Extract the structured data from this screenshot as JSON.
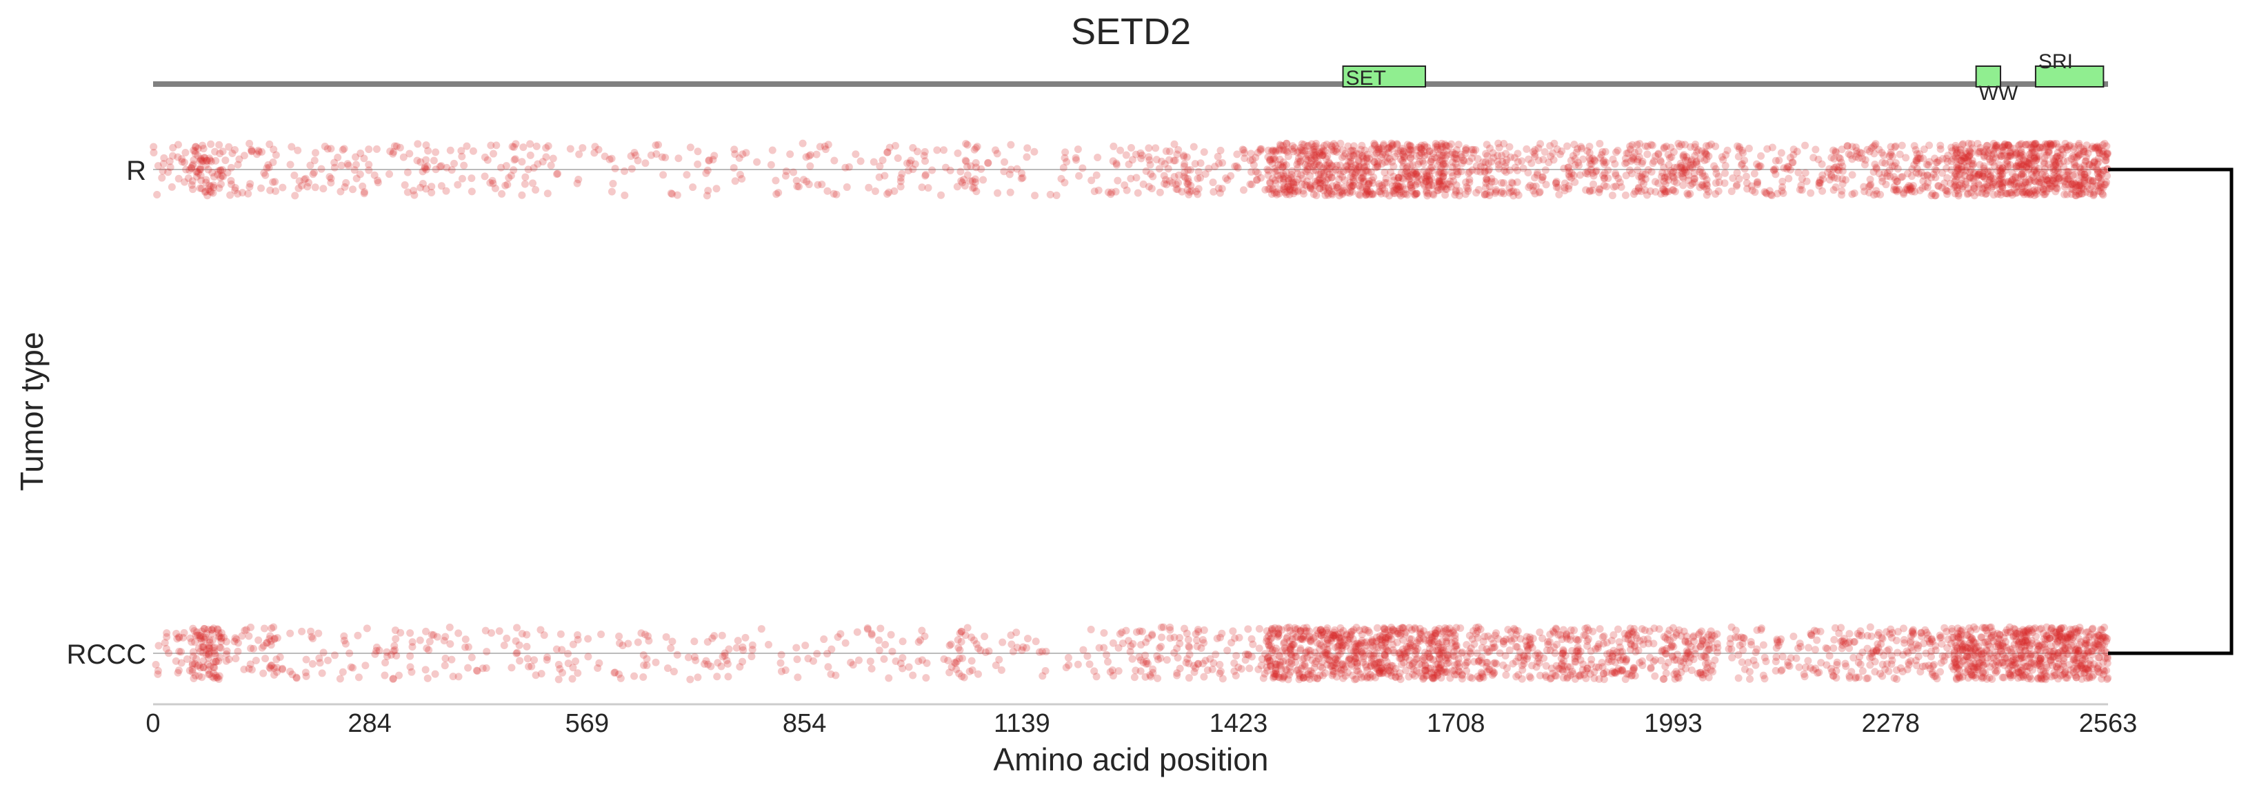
{
  "chart_data": {
    "type": "scatter",
    "title": "SETD2",
    "xlabel": "Amino acid position",
    "ylabel": "Tumor type",
    "xlim": [
      0,
      2563
    ],
    "x_ticks": [
      "0",
      "284",
      "569",
      "854",
      "1139",
      "1423",
      "1708",
      "1993",
      "2278",
      "2563"
    ],
    "categories": [
      "R",
      "RCCC"
    ],
    "point_color": "#d62728",
    "point_alpha": 0.25,
    "domain_color": "#90ee90",
    "protein_track_color": "#808080",
    "domains": [
      {
        "name": "SET",
        "start": 1560,
        "end": 1668,
        "label_position": "inside"
      },
      {
        "name": "WW",
        "start": 2390,
        "end": 2422,
        "label_position": "below"
      },
      {
        "name": "SRI",
        "start": 2468,
        "end": 2557,
        "label_position": "above"
      }
    ],
    "mutation_density": [
      {
        "range": [
          0,
          50
        ],
        "weight": 3
      },
      {
        "range": [
          50,
          90
        ],
        "weight": 14
      },
      {
        "range": [
          90,
          140
        ],
        "weight": 4
      },
      {
        "range": [
          140,
          160
        ],
        "weight": 6
      },
      {
        "range": [
          160,
          540
        ],
        "weight": 3
      },
      {
        "range": [
          540,
          1050
        ],
        "weight": 2
      },
      {
        "range": [
          1050,
          1080
        ],
        "weight": 6
      },
      {
        "range": [
          1080,
          1250
        ],
        "weight": 2
      },
      {
        "range": [
          1250,
          1460
        ],
        "weight": 5
      },
      {
        "range": [
          1460,
          1700
        ],
        "weight": 20
      },
      {
        "range": [
          1700,
          1980
        ],
        "weight": 10
      },
      {
        "range": [
          1980,
          2040
        ],
        "weight": 15
      },
      {
        "range": [
          2040,
          2200
        ],
        "weight": 5
      },
      {
        "range": [
          2200,
          2360
        ],
        "weight": 9
      },
      {
        "range": [
          2360,
          2563
        ],
        "weight": 24
      }
    ],
    "points_per_track": 2600,
    "bracket": {
      "connects": [
        "R",
        "RCCC"
      ]
    }
  }
}
